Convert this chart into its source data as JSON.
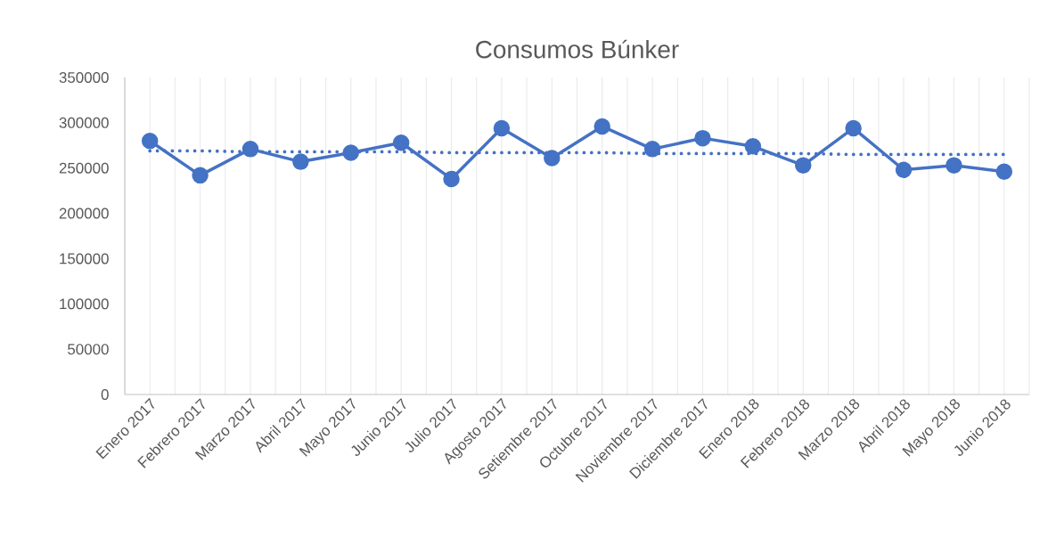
{
  "chart_data": {
    "type": "line",
    "title": "Consumos Búnker",
    "categories": [
      "Enero 2017",
      "Febrero 2017",
      "Marzo 2017",
      "Abril 2017",
      "Mayo 2017",
      "Junio 2017",
      "Julio 2017",
      "Agosto 2017",
      "Setiembre 2017",
      "Octubre 2017",
      "Noviembre 2017",
      "Diciembre 2017",
      "Enero 2018",
      "Febrero 2018",
      "Marzo 2018",
      "Abril 2018",
      "Mayo 2018",
      "Junio 2018"
    ],
    "series": [
      {
        "color": "#4472c4",
        "marker": "circle",
        "line_style": "solid",
        "values": [
          280000,
          242000,
          271000,
          257000,
          267000,
          278000,
          238000,
          294000,
          261000,
          296000,
          271000,
          283000,
          274000,
          253000,
          294000,
          248000,
          253000,
          246000
        ]
      },
      {
        "type": "line",
        "color": "#4472c4",
        "marker": "none",
        "line_style": "dotted",
        "values": [
          269000,
          269000,
          268000,
          268000,
          268000,
          268000,
          267000,
          267000,
          267000,
          267000,
          266000,
          266000,
          266000,
          266000,
          265000,
          265000,
          265000,
          265000
        ]
      }
    ],
    "ylim": [
      0,
      350000
    ],
    "yticks": [
      0,
      50000,
      100000,
      150000,
      200000,
      250000,
      300000,
      350000
    ],
    "grid": "x"
  }
}
